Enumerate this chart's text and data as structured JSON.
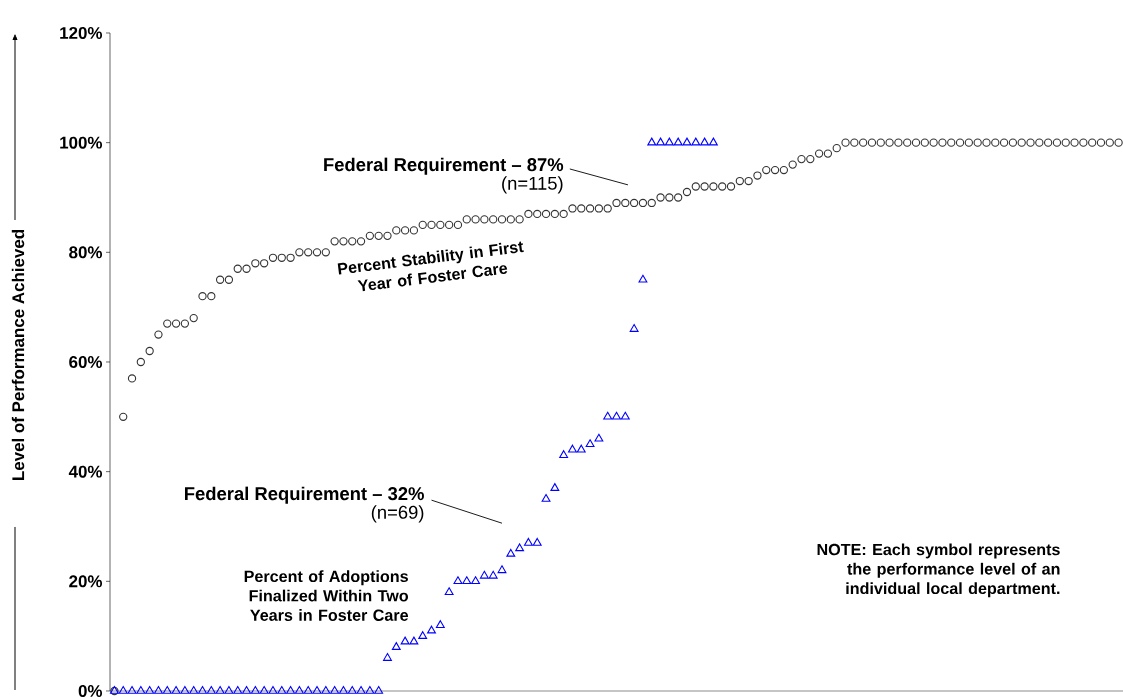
{
  "chart_data": {
    "type": "scatter",
    "ylabel": "Level of Performance Achieved",
    "categories": [
      null,
      null,
      null,
      null,
      null,
      null,
      null,
      null,
      null,
      null,
      null,
      null,
      null,
      null,
      null,
      null,
      null,
      null,
      null,
      null,
      null,
      null,
      null,
      null,
      null,
      null,
      null,
      null,
      null,
      null,
      null,
      null,
      null,
      null,
      null,
      null,
      null,
      null,
      null,
      null,
      null,
      null,
      null,
      null,
      null,
      null,
      null,
      null,
      null,
      null,
      null,
      null,
      null,
      null,
      null,
      null,
      null,
      null,
      null,
      null,
      null,
      null,
      null,
      null,
      null,
      null,
      null,
      null,
      null,
      null,
      null,
      null,
      null,
      null,
      null,
      null,
      null,
      null,
      null,
      null,
      null,
      null,
      null,
      null,
      null,
      null,
      null,
      null,
      null,
      null,
      null,
      null,
      null,
      null,
      null,
      null,
      null,
      null,
      null,
      null,
      null,
      null,
      null,
      null,
      null,
      null,
      null,
      null,
      null,
      null,
      null,
      null,
      null,
      null,
      null
    ],
    "ylim": [
      0,
      120
    ],
    "yticks": [
      {
        "value": 0,
        "label": "0%"
      },
      {
        "value": 20,
        "label": "20%"
      },
      {
        "value": 40,
        "label": "40%"
      },
      {
        "value": 60,
        "label": "60%"
      },
      {
        "value": 80,
        "label": "80%"
      },
      {
        "value": 100,
        "label": "100%"
      },
      {
        "value": 120,
        "label": "120%"
      }
    ],
    "tick_labels": "y",
    "series": [
      {
        "name": "Percent Stability in First Year of Foster Care",
        "color": "#333333",
        "marker": "circle",
        "values": [
          0,
          50,
          57,
          60,
          62,
          65,
          67,
          67,
          67,
          68,
          72,
          72,
          75,
          75,
          77,
          77,
          78,
          78,
          79,
          79,
          79,
          80,
          80,
          80,
          80,
          82,
          82,
          82,
          82,
          83,
          83,
          83,
          84,
          84,
          84,
          85,
          85,
          85,
          85,
          85,
          86,
          86,
          86,
          86,
          86,
          86,
          86,
          87,
          87,
          87,
          87,
          87,
          88,
          88,
          88,
          88,
          88,
          89,
          89,
          89,
          89,
          89,
          90,
          90,
          90,
          91,
          92,
          92,
          92,
          92,
          92,
          93,
          93,
          94,
          95,
          95,
          95,
          96,
          97,
          97,
          98,
          98,
          99,
          100,
          100,
          100,
          100,
          100,
          100,
          100,
          100,
          100,
          100,
          100,
          100,
          100,
          100,
          100,
          100,
          100,
          100,
          100,
          100,
          100,
          100,
          100,
          100,
          100,
          100,
          100,
          100,
          100,
          100,
          100,
          100
        ]
      },
      {
        "name": "Percent of Adoptions Finalized Within Two Years in Foster Care",
        "color": "#0000ff",
        "marker": "triangle",
        "values": [
          0,
          0,
          0,
          0,
          0,
          0,
          0,
          0,
          0,
          0,
          0,
          0,
          0,
          0,
          0,
          0,
          0,
          0,
          0,
          0,
          0,
          0,
          0,
          0,
          0,
          0,
          0,
          0,
          0,
          0,
          0,
          6,
          8,
          9,
          9,
          10,
          11,
          12,
          18,
          20,
          20,
          20,
          21,
          21,
          22,
          25,
          26,
          27,
          27,
          35,
          37,
          43,
          44,
          44,
          45,
          46,
          50,
          50,
          50,
          66,
          75,
          100,
          100,
          100,
          100,
          100,
          100,
          100,
          100,
          null,
          null,
          null,
          null,
          null,
          null,
          null,
          null,
          null,
          null,
          null,
          null,
          null,
          null,
          null,
          null,
          null,
          null,
          null,
          null,
          null,
          null,
          null,
          null,
          null,
          null,
          null,
          null,
          null,
          null,
          null,
          null,
          null,
          null,
          null,
          null,
          null,
          null,
          null,
          null,
          null,
          null,
          null,
          null,
          null,
          null
        ]
      }
    ],
    "annotations": [
      "Federal Requirement – 87%",
      "(n=115)",
      "Federal Requirement – 32%",
      "(n=69)",
      "NOTE:  Each symbol represents the performance level of an individual local department."
    ]
  }
}
